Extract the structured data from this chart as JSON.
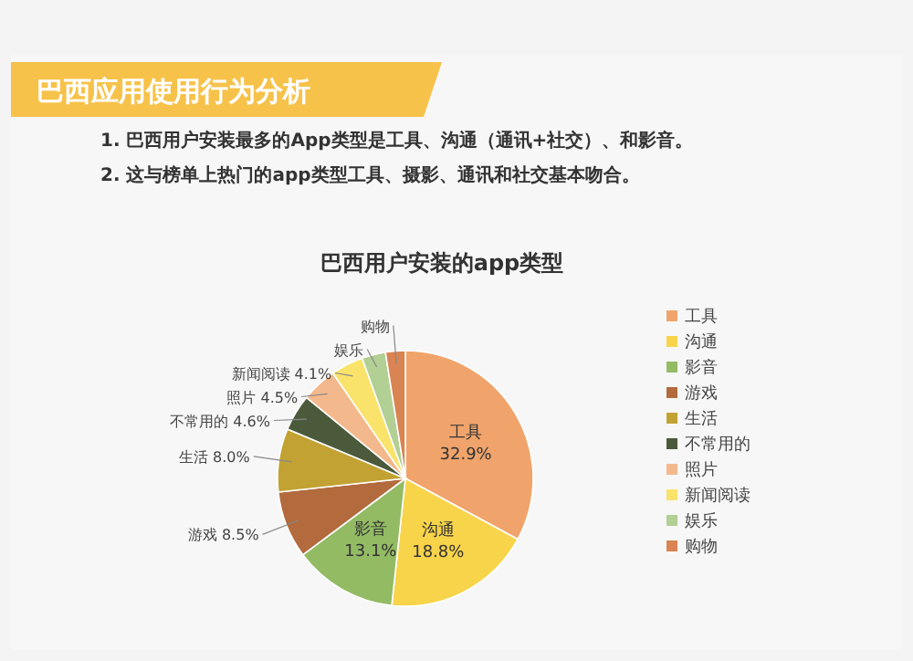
{
  "chart_data": {
    "type": "pie",
    "title": "巴西用户安装的app类型",
    "annotations": [
      "巴西应用使用行为分析",
      "1. 巴西用户安装最多的App类型是工具、沟通（通讯+社交）、和影音。",
      "2. 这与榜单上热门的app类型工具、摄影、通讯和社交基本吻合。"
    ],
    "categories": [
      "工具",
      "沟通",
      "影音",
      "游戏",
      "生活",
      "不常用的",
      "照片",
      "新闻阅读",
      "娱乐",
      "购物"
    ],
    "values": [
      32.9,
      18.8,
      13.1,
      8.5,
      8.0,
      4.6,
      4.5,
      4.1,
      3.0,
      2.5
    ],
    "value_labels": [
      "32.9%",
      "18.8%",
      "13.1%",
      "8.5%",
      "8.0%",
      "4.6%",
      "4.5%",
      "4.1%",
      null,
      null
    ],
    "colors": [
      "#f0a46c",
      "#f8d44a",
      "#93bb64",
      "#b36a3c",
      "#c2a232",
      "#4b5a3a",
      "#f3b98c",
      "#f9e36a",
      "#b2cf94",
      "#d98452"
    ],
    "legend": "right"
  }
}
